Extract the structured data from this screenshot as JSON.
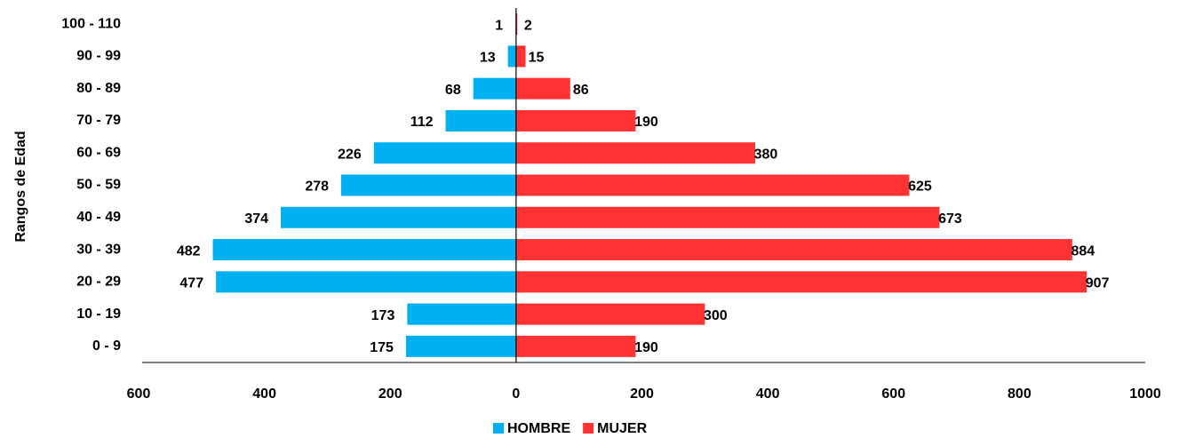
{
  "chart_data": {
    "type": "pyramid",
    "y_axis_label": "Rangos de Edad",
    "categories": [
      "100 - 110",
      "90 - 99",
      "80 - 89",
      "70 - 79",
      "60 - 69",
      "50 - 59",
      "40 - 49",
      "30 - 39",
      "20 - 29",
      "10 - 19",
      "0 - 9"
    ],
    "series": [
      {
        "name": "HOMBRE",
        "color": "#00b0f0",
        "values": [
          -1,
          -13,
          -68,
          -112,
          -226,
          -278,
          -374,
          -482,
          -477,
          -173,
          -175
        ],
        "value_labels": [
          "1",
          "13",
          "68",
          "112",
          "226",
          "278",
          "374",
          "482",
          "477",
          "173",
          "175"
        ]
      },
      {
        "name": "MUJER",
        "color": "#ff3333",
        "values": [
          2,
          15,
          86,
          190,
          380,
          625,
          673,
          884,
          907,
          300,
          190
        ]
      }
    ],
    "xlim": [
      -600,
      1000
    ],
    "xticks": [
      {
        "value": -600,
        "label": "600"
      },
      {
        "value": -400,
        "label": "400"
      },
      {
        "value": -200,
        "label": "200"
      },
      0,
      200,
      400,
      600,
      800,
      1000
    ],
    "legend": "bottom"
  }
}
